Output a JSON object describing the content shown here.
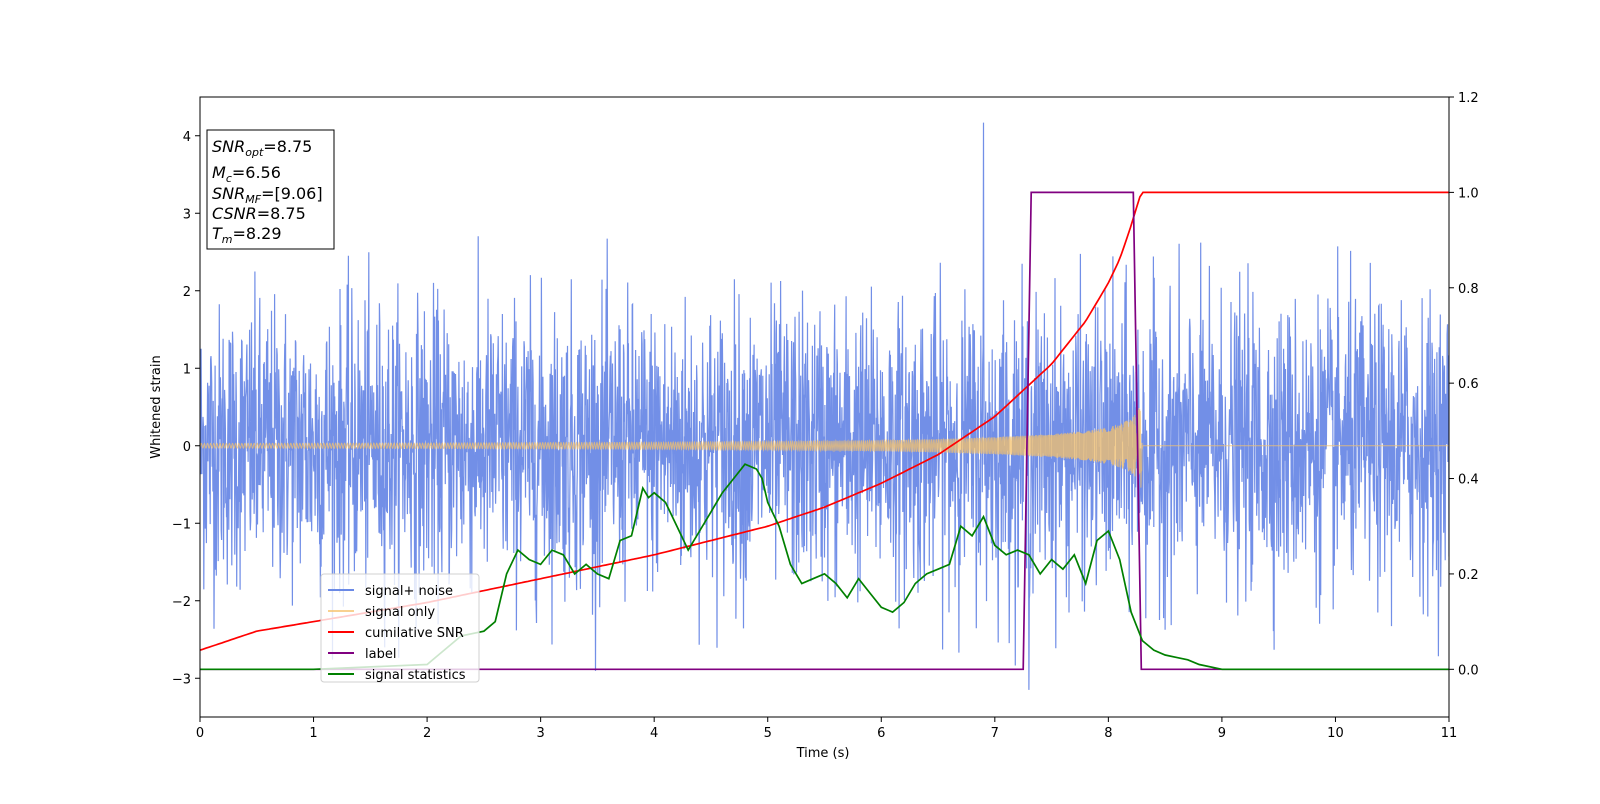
{
  "chart_data": {
    "type": "line",
    "xlabel": "Time (s)",
    "ylabel": "Whitened strain",
    "xlim": [
      0,
      11
    ],
    "ylim": [
      -3.5,
      4.5
    ],
    "y2lim": [
      -0.1,
      1.2
    ],
    "x_ticks": [
      0,
      1,
      2,
      3,
      4,
      5,
      6,
      7,
      8,
      9,
      10,
      11
    ],
    "y_ticks": [
      -3,
      -2,
      -1,
      0,
      1,
      2,
      3,
      4
    ],
    "y2_ticks": [
      0.0,
      0.2,
      0.4,
      0.6,
      0.8,
      1.0,
      1.2
    ],
    "legend_position": "lower-left",
    "grid": false,
    "series": [
      {
        "name": "signal+ noise",
        "color": "#6a89e6",
        "axis": "left",
        "description_values": {
          "std": 0.9,
          "duration_s": 11,
          "peak_max": 4.17,
          "peak_max_time": 6.9,
          "peak_min": -3.15,
          "peak_min_time": 7.3
        }
      },
      {
        "name": "signal only",
        "color": "#f5c26b",
        "axis": "left",
        "envelope": {
          "x": [
            0,
            2,
            4,
            5,
            6,
            6.5,
            7,
            7.5,
            7.8,
            8.0,
            8.1,
            8.2,
            8.25,
            8.29,
            8.3,
            11
          ],
          "amp": [
            0.03,
            0.035,
            0.045,
            0.055,
            0.07,
            0.085,
            0.11,
            0.15,
            0.19,
            0.24,
            0.28,
            0.35,
            0.43,
            0.55,
            0.0,
            0.0
          ]
        }
      },
      {
        "name": "cumilative SNR",
        "color": "#ff0000",
        "axis": "right",
        "x": [
          0,
          0.5,
          1,
          2,
          3,
          4,
          5,
          5.5,
          6,
          6.5,
          7,
          7.5,
          7.8,
          8.0,
          8.1,
          8.2,
          8.25,
          8.29,
          11
        ],
        "y": [
          0.04,
          0.08,
          0.1,
          0.14,
          0.19,
          0.24,
          0.3,
          0.34,
          0.39,
          0.45,
          0.53,
          0.64,
          0.73,
          0.81,
          0.86,
          0.93,
          0.97,
          1.0,
          1.0
        ]
      },
      {
        "name": "label",
        "color": "#800080",
        "axis": "right",
        "x": [
          0,
          7.25,
          7.32,
          8.22,
          8.29,
          11
        ],
        "y": [
          0,
          0,
          1,
          1,
          0,
          0
        ]
      },
      {
        "name": "signal statistics",
        "color": "#008000",
        "axis": "right",
        "x": [
          0,
          1,
          2,
          2.1,
          2.3,
          2.5,
          2.6,
          2.7,
          2.8,
          2.9,
          3.0,
          3.1,
          3.2,
          3.3,
          3.4,
          3.5,
          3.6,
          3.7,
          3.8,
          3.9,
          3.95,
          4.0,
          4.1,
          4.2,
          4.3,
          4.4,
          4.5,
          4.6,
          4.7,
          4.8,
          4.9,
          4.95,
          5.0,
          5.1,
          5.2,
          5.3,
          5.4,
          5.5,
          5.6,
          5.7,
          5.8,
          5.9,
          6.0,
          6.1,
          6.2,
          6.3,
          6.4,
          6.5,
          6.6,
          6.7,
          6.8,
          6.9,
          7.0,
          7.1,
          7.2,
          7.3,
          7.4,
          7.5,
          7.6,
          7.7,
          7.8,
          7.9,
          8.0,
          8.1,
          8.2,
          8.3,
          8.4,
          8.5,
          8.6,
          8.7,
          8.8,
          9.0,
          9.2,
          9.5,
          11
        ],
        "y": [
          0,
          0,
          0.01,
          0.03,
          0.07,
          0.08,
          0.1,
          0.2,
          0.25,
          0.23,
          0.22,
          0.25,
          0.24,
          0.2,
          0.22,
          0.2,
          0.19,
          0.27,
          0.28,
          0.38,
          0.36,
          0.37,
          0.35,
          0.3,
          0.25,
          0.29,
          0.33,
          0.37,
          0.4,
          0.43,
          0.42,
          0.4,
          0.35,
          0.3,
          0.22,
          0.18,
          0.19,
          0.2,
          0.18,
          0.15,
          0.19,
          0.16,
          0.13,
          0.12,
          0.14,
          0.18,
          0.2,
          0.21,
          0.22,
          0.3,
          0.28,
          0.32,
          0.26,
          0.24,
          0.25,
          0.24,
          0.2,
          0.23,
          0.21,
          0.24,
          0.18,
          0.27,
          0.29,
          0.23,
          0.12,
          0.06,
          0.04,
          0.03,
          0.025,
          0.02,
          0.01,
          0.0,
          0.0,
          0.0,
          0.0
        ]
      }
    ],
    "info_box": {
      "snr_opt": {
        "label": "SNR",
        "sub": "opt",
        "value": "=8.75"
      },
      "mc": {
        "label": "M",
        "sub": "c",
        "value": "=6.56"
      },
      "snr_mf": {
        "label": "SNR",
        "sub": "MF",
        "value": "=[9.06]"
      },
      "csnr": {
        "label": "CSNR",
        "value": "=8.75"
      },
      "tm": {
        "label": "T",
        "sub": "m",
        "value": "=8.29"
      }
    }
  }
}
